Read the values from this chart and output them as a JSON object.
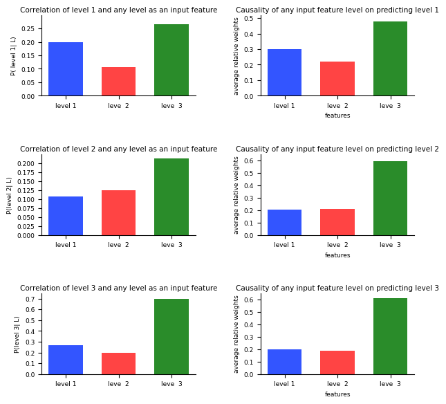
{
  "rows": [
    {
      "corr_title": "Correlation of level 1 and any level as an input feature",
      "corr_ylabel": "P( level 1| L)",
      "corr_values": [
        0.2,
        0.107,
        0.265
      ],
      "corr_ylim": [
        0,
        0.3
      ],
      "corr_yticks": [
        0.0,
        0.05,
        0.1,
        0.15,
        0.2,
        0.25
      ],
      "caus_title": "Causality of any input feature level on predicting level 1",
      "caus_ylabel": "average relative weights",
      "caus_xlabel": "features",
      "caus_values": [
        0.3,
        0.222,
        0.478
      ],
      "caus_ylim": [
        0,
        0.52
      ],
      "caus_yticks": [
        0.0,
        0.1,
        0.2,
        0.3,
        0.4,
        0.5
      ]
    },
    {
      "corr_title": "Correlation of level 2 and any level as an input feature",
      "corr_ylabel": "P(level 2| L)",
      "corr_values": [
        0.107,
        0.125,
        0.213
      ],
      "corr_ylim": [
        0,
        0.225
      ],
      "corr_yticks": [
        0.0,
        0.025,
        0.05,
        0.075,
        0.1,
        0.125,
        0.15,
        0.175,
        0.2
      ],
      "caus_title": "Causality of any input feature level on predicting level 2",
      "caus_ylabel": "average relative weights",
      "caus_xlabel": "features",
      "caus_values": [
        0.205,
        0.21,
        0.595
      ],
      "caus_ylim": [
        0,
        0.65
      ],
      "caus_yticks": [
        0.0,
        0.1,
        0.2,
        0.3,
        0.4,
        0.5,
        0.6
      ]
    },
    {
      "corr_title": "Correlation of level 3 and any level as an input feature",
      "corr_ylabel": "P(level 3| L)",
      "corr_values": [
        0.265,
        0.195,
        0.7
      ],
      "corr_ylim": [
        0,
        0.75
      ],
      "corr_yticks": [
        0.0,
        0.1,
        0.2,
        0.3,
        0.4,
        0.5,
        0.6,
        0.7
      ],
      "caus_title": "Causality of any input feature level on predicting level 3",
      "caus_ylabel": "average relative weights",
      "caus_xlabel": "features",
      "caus_values": [
        0.2,
        0.19,
        0.61
      ],
      "caus_ylim": [
        0,
        0.65
      ],
      "caus_yticks": [
        0.0,
        0.1,
        0.2,
        0.3,
        0.4,
        0.5,
        0.6
      ]
    }
  ],
  "categories": [
    "level 1",
    "leve  2",
    "leve  3"
  ],
  "bar_colors": [
    "#3355ff",
    "#ff4444",
    "#2a8c2a"
  ],
  "title_fontsize": 7.5,
  "label_fontsize": 6.5,
  "tick_fontsize": 6.5
}
